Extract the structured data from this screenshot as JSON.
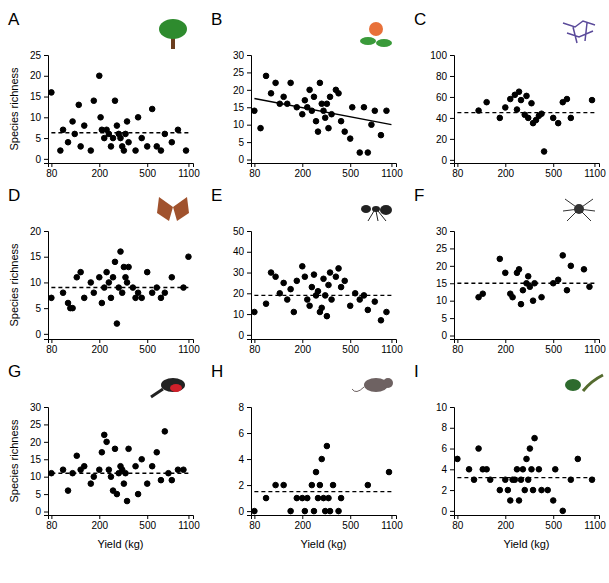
{
  "chart_data": [
    {
      "type": "scatter",
      "title": "A",
      "ylabel": "Species richness",
      "log": "x",
      "xlim": [
        75,
        1200
      ],
      "xticks": [
        80,
        200,
        500,
        1100
      ],
      "ylim": [
        -1,
        25
      ],
      "yticks": [
        0,
        5,
        10,
        15,
        20,
        25
      ],
      "grid": false,
      "series": [
        {
          "type": "scatter",
          "marker": "circle",
          "color": "#000000",
          "x": [
            80,
            95,
            100,
            110,
            120,
            125,
            135,
            140,
            150,
            170,
            180,
            200,
            205,
            210,
            220,
            230,
            240,
            250,
            260,
            270,
            280,
            290,
            300,
            310,
            320,
            330,
            340,
            350,
            400,
            420,
            450,
            500,
            550,
            600,
            650,
            700,
            800,
            900,
            1050
          ],
          "values": [
            16,
            2,
            7,
            4,
            9,
            6,
            13,
            3,
            8,
            2,
            14,
            20,
            10,
            7,
            5,
            7,
            6,
            3,
            5,
            14,
            8,
            6,
            5,
            3,
            2,
            6,
            9,
            4,
            2,
            10,
            5,
            3,
            12,
            3,
            2,
            6,
            4,
            7,
            2
          ]
        },
        {
          "type": "line",
          "line_style": "dashed",
          "color": "#000000",
          "x": [
            80,
            1100
          ],
          "values": [
            6.3,
            6.3
          ]
        }
      ]
    },
    {
      "type": "scatter",
      "title": "B",
      "log": "x",
      "xlim": [
        75,
        1200
      ],
      "xticks": [
        80,
        200,
        500,
        1100
      ],
      "ylim": [
        -1,
        30
      ],
      "yticks": [
        0,
        5,
        10,
        15,
        20,
        25,
        30
      ],
      "grid": false,
      "series": [
        {
          "type": "scatter",
          "marker": "circle",
          "color": "#000000",
          "x": [
            80,
            90,
            100,
            110,
            120,
            130,
            140,
            150,
            160,
            180,
            200,
            210,
            220,
            230,
            240,
            250,
            260,
            270,
            280,
            290,
            300,
            310,
            320,
            330,
            340,
            350,
            380,
            400,
            420,
            450,
            500,
            520,
            600,
            650,
            700,
            750,
            800,
            900,
            1000
          ],
          "values": [
            14,
            9,
            24,
            19,
            22,
            16,
            18,
            16,
            22,
            15,
            13,
            17,
            15,
            20,
            14,
            18,
            11,
            8,
            22,
            16,
            14,
            12,
            16,
            9,
            18,
            13,
            20,
            19,
            11,
            8,
            6,
            15,
            2,
            15,
            2,
            10,
            14,
            7,
            14
          ]
        },
        {
          "type": "line",
          "line_style": "solid",
          "color": "#000000",
          "x": [
            80,
            1100
          ],
          "values": [
            17.5,
            10
          ]
        }
      ]
    },
    {
      "type": "scatter",
      "title": "C",
      "log": "x",
      "xlim": [
        75,
        1200
      ],
      "xticks": [
        80,
        200,
        500,
        1100
      ],
      "ylim": [
        -3,
        100
      ],
      "yticks": [
        0,
        20,
        40,
        60,
        80,
        100
      ],
      "grid": false,
      "series": [
        {
          "type": "scatter",
          "marker": "circle",
          "color": "#000000",
          "x": [
            120,
            140,
            180,
            200,
            220,
            240,
            250,
            260,
            270,
            290,
            300,
            310,
            330,
            340,
            360,
            380,
            400,
            420,
            500,
            550,
            600,
            650,
            700,
            1050
          ],
          "values": [
            47,
            55,
            40,
            50,
            58,
            62,
            48,
            65,
            57,
            43,
            61,
            40,
            54,
            35,
            38,
            42,
            44,
            8,
            40,
            35,
            55,
            58,
            40,
            57
          ]
        },
        {
          "type": "line",
          "line_style": "dashed",
          "color": "#000000",
          "x": [
            80,
            1100
          ],
          "values": [
            45,
            45
          ]
        }
      ]
    },
    {
      "type": "scatter",
      "title": "D",
      "ylabel": "Species richness",
      "log": "x",
      "xlim": [
        75,
        1200
      ],
      "xticks": [
        80,
        200,
        500,
        1100
      ],
      "ylim": [
        -1,
        20
      ],
      "yticks": [
        0,
        5,
        10,
        15,
        20
      ],
      "grid": false,
      "series": [
        {
          "type": "scatter",
          "marker": "circle",
          "color": "#000000",
          "x": [
            80,
            100,
            110,
            115,
            120,
            130,
            140,
            150,
            170,
            180,
            200,
            210,
            220,
            230,
            240,
            250,
            260,
            270,
            280,
            290,
            300,
            310,
            320,
            330,
            340,
            350,
            380,
            400,
            420,
            450,
            500,
            550,
            600,
            650,
            700,
            800,
            1000,
            1100
          ],
          "values": [
            7,
            8,
            6,
            5,
            5,
            11,
            12,
            7,
            10,
            8,
            11,
            6,
            9,
            12,
            10,
            7,
            11,
            14,
            2,
            9,
            16,
            8,
            13,
            11,
            10,
            13,
            9,
            7,
            8,
            7,
            12,
            8,
            9,
            7,
            8,
            11,
            9,
            15
          ]
        },
        {
          "type": "line",
          "line_style": "dashed",
          "color": "#000000",
          "x": [
            80,
            1100
          ],
          "values": [
            9,
            9
          ]
        }
      ]
    },
    {
      "type": "scatter",
      "title": "E",
      "log": "x",
      "xlim": [
        75,
        1200
      ],
      "xticks": [
        80,
        200,
        500,
        1100
      ],
      "ylim": [
        -2,
        50
      ],
      "yticks": [
        0,
        10,
        20,
        30,
        40,
        50
      ],
      "grid": false,
      "series": [
        {
          "type": "scatter",
          "marker": "circle",
          "color": "#000000",
          "x": [
            80,
            100,
            110,
            120,
            130,
            140,
            150,
            160,
            170,
            180,
            200,
            210,
            220,
            230,
            240,
            250,
            260,
            270,
            280,
            290,
            300,
            310,
            320,
            330,
            340,
            350,
            380,
            400,
            420,
            450,
            500,
            550,
            600,
            650,
            700,
            800,
            900,
            1000
          ],
          "values": [
            11,
            15,
            30,
            28,
            20,
            25,
            17,
            22,
            11,
            26,
            33,
            28,
            17,
            14,
            23,
            29,
            19,
            21,
            11,
            13,
            27,
            19,
            9,
            24,
            30,
            17,
            28,
            32,
            23,
            26,
            14,
            20,
            17,
            19,
            12,
            16,
            7,
            11
          ]
        },
        {
          "type": "line",
          "line_style": "dashed",
          "color": "#000000",
          "x": [
            80,
            1100
          ],
          "values": [
            19,
            19
          ]
        }
      ]
    },
    {
      "type": "scatter",
      "title": "F",
      "log": "x",
      "xlim": [
        75,
        1200
      ],
      "xticks": [
        80,
        200,
        500,
        1100
      ],
      "ylim": [
        -1,
        30
      ],
      "yticks": [
        0,
        5,
        10,
        15,
        20,
        25,
        30
      ],
      "grid": false,
      "series": [
        {
          "type": "scatter",
          "marker": "circle",
          "color": "#000000",
          "x": [
            120,
            130,
            180,
            200,
            220,
            230,
            250,
            260,
            270,
            280,
            300,
            310,
            320,
            340,
            350,
            400,
            500,
            550,
            600,
            650,
            700,
            900,
            1000
          ],
          "values": [
            11,
            12,
            22,
            18,
            12,
            11,
            18,
            19,
            9,
            13,
            15,
            17,
            14,
            10,
            15,
            11,
            15,
            16,
            23,
            13,
            20,
            19,
            14
          ]
        },
        {
          "type": "line",
          "line_style": "dashed",
          "color": "#000000",
          "x": [
            80,
            1100
          ],
          "values": [
            15,
            15
          ]
        }
      ]
    },
    {
      "type": "scatter",
      "title": "G",
      "ylabel": "Species richness",
      "xlabel": "Yield (kg)",
      "log": "x",
      "xlim": [
        75,
        1200
      ],
      "xticks": [
        80,
        200,
        500,
        1100
      ],
      "ylim": [
        -1,
        30
      ],
      "yticks": [
        0,
        5,
        10,
        15,
        20,
        25,
        30
      ],
      "grid": false,
      "series": [
        {
          "type": "scatter",
          "marker": "circle",
          "color": "#000000",
          "x": [
            80,
            100,
            110,
            120,
            130,
            140,
            150,
            170,
            180,
            200,
            210,
            220,
            230,
            240,
            250,
            260,
            270,
            280,
            290,
            300,
            310,
            320,
            330,
            340,
            350,
            400,
            420,
            450,
            500,
            550,
            600,
            650,
            700,
            750,
            800,
            900,
            1000
          ],
          "values": [
            11,
            12,
            6,
            11,
            16,
            12,
            13,
            8,
            10,
            12,
            17,
            22,
            20,
            12,
            10,
            6,
            18,
            5,
            11,
            13,
            12,
            8,
            11,
            3,
            18,
            13,
            5,
            15,
            8,
            13,
            17,
            9,
            23,
            11,
            9,
            12,
            12
          ]
        },
        {
          "type": "line",
          "line_style": "dashed",
          "color": "#000000",
          "x": [
            80,
            1100
          ],
          "values": [
            11,
            11
          ]
        }
      ]
    },
    {
      "type": "scatter",
      "title": "H",
      "xlabel": "Yield (kg)",
      "log": "x",
      "xlim": [
        75,
        1200
      ],
      "xticks": [
        80,
        200,
        500,
        1100
      ],
      "ylim": [
        -0.3,
        8
      ],
      "yticks": [
        0,
        2,
        4,
        6,
        8
      ],
      "grid": false,
      "series": [
        {
          "type": "scatter",
          "marker": "circle",
          "color": "#000000",
          "x": [
            80,
            100,
            120,
            140,
            160,
            180,
            200,
            210,
            220,
            240,
            250,
            260,
            270,
            280,
            290,
            300,
            310,
            320,
            330,
            340,
            360,
            400,
            420,
            700,
            1050
          ],
          "values": [
            0,
            1,
            2,
            2,
            0,
            1,
            1,
            0,
            1,
            2,
            0,
            3,
            1,
            2,
            4,
            1,
            0,
            5,
            1,
            0,
            2,
            0,
            1,
            2,
            3
          ]
        },
        {
          "type": "line",
          "line_style": "dashed",
          "color": "#000000",
          "x": [
            80,
            1100
          ],
          "values": [
            1.5,
            1.5
          ]
        }
      ]
    },
    {
      "type": "scatter",
      "title": "I",
      "xlabel": "Yield (kg)",
      "log": "x",
      "xlim": [
        75,
        1200
      ],
      "xticks": [
        80,
        200,
        500,
        1100
      ],
      "ylim": [
        -0.4,
        10
      ],
      "yticks": [
        0,
        2,
        4,
        6,
        8,
        10
      ],
      "grid": false,
      "series": [
        {
          "type": "scatter",
          "marker": "circle",
          "color": "#000000",
          "x": [
            80,
            100,
            110,
            120,
            130,
            140,
            150,
            180,
            200,
            210,
            220,
            230,
            240,
            250,
            260,
            270,
            280,
            290,
            300,
            310,
            320,
            330,
            340,
            350,
            380,
            400,
            450,
            500,
            520,
            600,
            700,
            800,
            1050
          ],
          "values": [
            5,
            4,
            3,
            6,
            4,
            4,
            3,
            2,
            3,
            2,
            1,
            3,
            3,
            4,
            1,
            3,
            4,
            2,
            5,
            3,
            6,
            4,
            2,
            7,
            4,
            2,
            2,
            1,
            4,
            0,
            3,
            5,
            3
          ]
        },
        {
          "type": "line",
          "line_style": "dashed",
          "color": "#000000",
          "x": [
            80,
            1100
          ],
          "values": [
            3.2,
            3.2
          ]
        }
      ]
    }
  ]
}
